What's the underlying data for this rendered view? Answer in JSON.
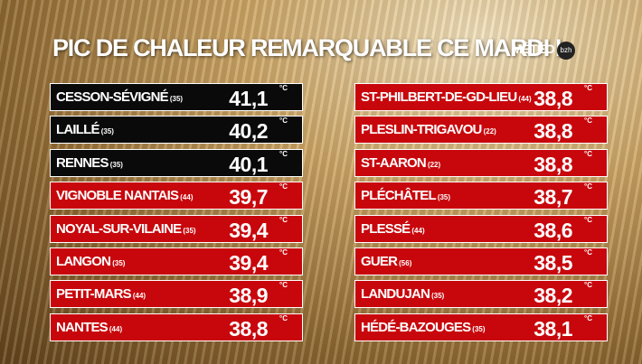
{
  "header": {
    "title": "PIC DE CHALEUR REMARQUABLE CE MARDI !"
  },
  "logo": {
    "text": "MÉTÉO",
    "badge": "bzh"
  },
  "unit": "°C",
  "columns": [
    {
      "rows": [
        {
          "name": "CESSON-SÉVIGNÉ",
          "dept": "(35)",
          "value": "41,1",
          "color": "#0a0a0a"
        },
        {
          "name": "LAILLÉ",
          "dept": "(35)",
          "value": "40,2",
          "color": "#0a0a0a"
        },
        {
          "name": "RENNES",
          "dept": "(35)",
          "value": "40,1",
          "color": "#0a0a0a"
        },
        {
          "name": "VIGNOBLE NANTAIS",
          "dept": "(44)",
          "value": "39,7",
          "color": "#c8070c"
        },
        {
          "name": "NOYAL-SUR-VILAINE",
          "dept": "(35)",
          "value": "39,4",
          "color": "#c8070c"
        },
        {
          "name": "LANGON",
          "dept": "(35)",
          "value": "39,4",
          "color": "#c8070c"
        },
        {
          "name": "PETIT-MARS",
          "dept": "(44)",
          "value": "38,9",
          "color": "#c8070c"
        },
        {
          "name": "NANTES",
          "dept": "(44)",
          "value": "38,8",
          "color": "#c8070c"
        }
      ]
    },
    {
      "rows": [
        {
          "name": "ST-PHILBERT-DE-GD-LIEU",
          "dept": "(44)",
          "value": "38,8",
          "color": "#c8070c"
        },
        {
          "name": "PLESLIN-TRIGAVOU",
          "dept": "(22)",
          "value": "38,8",
          "color": "#c8070c"
        },
        {
          "name": "ST-AARON",
          "dept": "(22)",
          "value": "38,8",
          "color": "#c8070c"
        },
        {
          "name": "PLÉCHÂTEL",
          "dept": "(35)",
          "value": "38,7",
          "color": "#c8070c"
        },
        {
          "name": "PLESSÉ",
          "dept": "(44)",
          "value": "38,6",
          "color": "#c8070c"
        },
        {
          "name": "GUER",
          "dept": "(56)",
          "value": "38,5",
          "color": "#c8070c"
        },
        {
          "name": "LANDUJAN",
          "dept": "(35)",
          "value": "38,2",
          "color": "#c8070c"
        },
        {
          "name": "HÉDÉ-BAZOUGES",
          "dept": "(35)",
          "value": "38,1",
          "color": "#c8070c"
        }
      ]
    }
  ]
}
